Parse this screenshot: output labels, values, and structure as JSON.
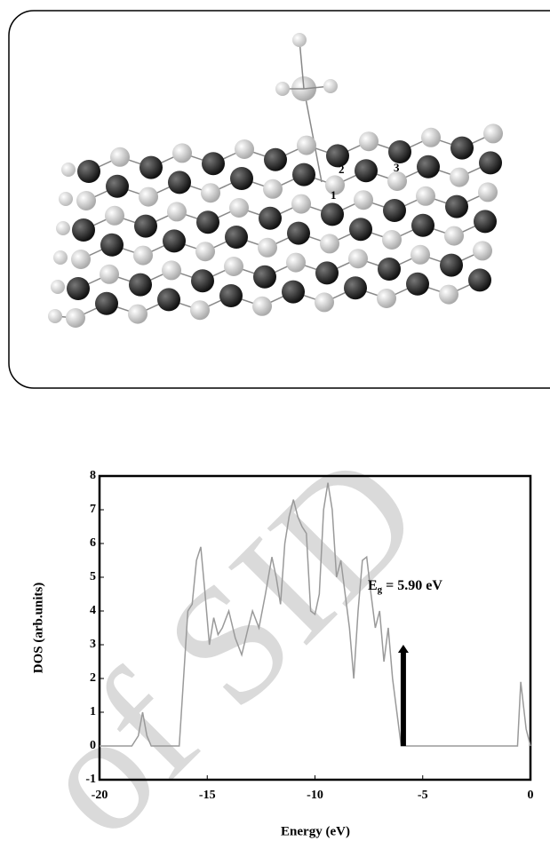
{
  "figure": {
    "molecule": {
      "site_labels": [
        "1",
        "2",
        "3"
      ]
    },
    "watermark": "of SID"
  },
  "chart_data": {
    "type": "line",
    "x": [
      -20,
      -18.5,
      -18.2,
      -18.0,
      -17.8,
      -17.6,
      -16.3,
      -16.1,
      -15.9,
      -15.7,
      -15.5,
      -15.3,
      -15.1,
      -14.9,
      -14.7,
      -14.5,
      -14.3,
      -14.0,
      -13.7,
      -13.4,
      -13.1,
      -12.9,
      -12.6,
      -12.3,
      -12.0,
      -11.8,
      -11.6,
      -11.4,
      -11.2,
      -11.0,
      -10.8,
      -10.6,
      -10.4,
      -10.2,
      -10.0,
      -9.8,
      -9.6,
      -9.4,
      -9.2,
      -9.0,
      -8.8,
      -8.6,
      -8.4,
      -8.2,
      -8.0,
      -7.8,
      -7.6,
      -7.4,
      -7.2,
      -7.0,
      -6.8,
      -6.6,
      -6.4,
      -6.2,
      -6.0,
      -0.6,
      -0.45,
      -0.2,
      0
    ],
    "series": [
      {
        "color": "#9a9a9a",
        "values": [
          0,
          0,
          0.3,
          1.0,
          0.3,
          0,
          0,
          2,
          4,
          4.2,
          5.5,
          5.9,
          4.5,
          3.0,
          3.8,
          3.3,
          3.5,
          4.0,
          3.2,
          2.7,
          3.5,
          4.0,
          3.5,
          4.5,
          5.6,
          5.0,
          4.2,
          6.0,
          6.8,
          7.3,
          6.8,
          6.5,
          6.3,
          4.0,
          3.9,
          4.5,
          7.0,
          7.8,
          7.0,
          5.0,
          5.5,
          4.5,
          3.5,
          2.0,
          4.0,
          5.5,
          5.6,
          4.5,
          3.5,
          4.0,
          2.5,
          3.5,
          2.0,
          1.0,
          0,
          0,
          1.9,
          0.5,
          0
        ]
      }
    ],
    "xlim": [
      -20,
      0
    ],
    "xticks": [
      -20,
      -15,
      -10,
      -5,
      0
    ],
    "ylim": [
      -1,
      8
    ],
    "yticks": [
      -1,
      0,
      1,
      2,
      3,
      4,
      5,
      6,
      7,
      8
    ],
    "xlabel": "Energy (eV)",
    "ylabel": "DOS (arb.units)",
    "annotation": {
      "text": "E",
      "subscript": "g",
      "rest": " = 5.90 eV",
      "arrow": {
        "x": -5.9,
        "y0": 0,
        "y1": 3
      },
      "color": "#000000"
    }
  }
}
